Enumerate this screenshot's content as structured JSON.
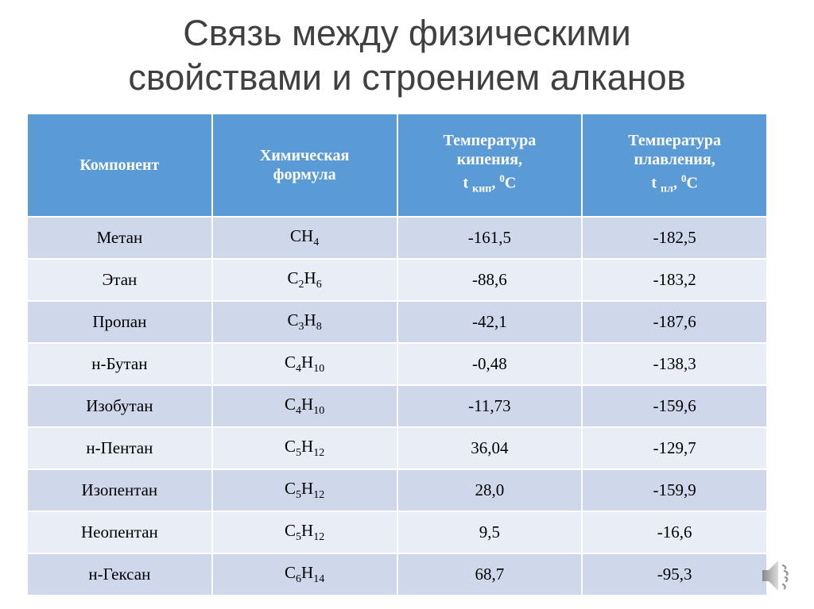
{
  "title": {
    "line1": "Связь между физическими",
    "line2": "свойствами и строением алканов"
  },
  "table": {
    "headers": {
      "component": "Компонент",
      "formula_l1": "Химическая",
      "formula_l2": "формула",
      "boil_l1": "Температура",
      "boil_l2": "кипения,",
      "boil_t": "t",
      "boil_sub": "кип",
      "boil_unit_sup": "0",
      "boil_unit": "C",
      "melt_l1": "Температура",
      "melt_l2": "плавления,",
      "melt_t": "t",
      "melt_sub": "пл",
      "melt_unit_sup": "0",
      "melt_unit": "C"
    },
    "rows": [
      {
        "name": "Метан",
        "formula": [
          [
            "C",
            ""
          ],
          [
            "H",
            "4"
          ]
        ],
        "boil": "-161,5",
        "melt": "-182,5"
      },
      {
        "name": "Этан",
        "formula": [
          [
            "C",
            "2"
          ],
          [
            "H",
            "6"
          ]
        ],
        "boil": "-88,6",
        "melt": "-183,2"
      },
      {
        "name": "Пропан",
        "formula": [
          [
            "C",
            "3"
          ],
          [
            "H",
            "8"
          ]
        ],
        "boil": "-42,1",
        "melt": "-187,6"
      },
      {
        "name": "н-Бутан",
        "formula": [
          [
            "C",
            "4"
          ],
          [
            "H",
            "10"
          ]
        ],
        "boil": "-0,48",
        "melt": "-138,3"
      },
      {
        "name": "Изобутан",
        "formula": [
          [
            "C",
            "4"
          ],
          [
            "H",
            "10"
          ]
        ],
        "boil": "-11,73",
        "melt": "-159,6"
      },
      {
        "name": "н-Пентан",
        "formula": [
          [
            "C",
            "5"
          ],
          [
            "H",
            "12"
          ]
        ],
        "boil": "36,04",
        "melt": "-129,7"
      },
      {
        "name": "Изопентан",
        "formula": [
          [
            "C",
            "5"
          ],
          [
            "H",
            "12"
          ]
        ],
        "boil": "28,0",
        "melt": "-159,9"
      },
      {
        "name": "Неопентан",
        "formula": [
          [
            "C",
            "5"
          ],
          [
            "H",
            "12"
          ]
        ],
        "boil": "9,5",
        "melt": "-16,6"
      },
      {
        "name": "н-Гексан",
        "formula": [
          [
            "C",
            "6"
          ],
          [
            "H",
            "14"
          ]
        ],
        "boil": "68,7",
        "melt": "-95,3"
      }
    ]
  },
  "colors": {
    "header": "#5b9bd5",
    "row_odd": "#cfd8ea",
    "row_even": "#e9edf6"
  },
  "icons": {
    "audio": "speaker-icon"
  }
}
